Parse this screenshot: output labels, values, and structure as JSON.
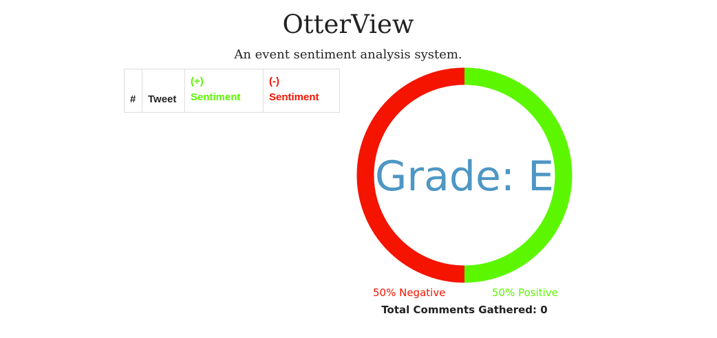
{
  "header": {
    "title": "OtterView",
    "subtitle": "An event sentiment analysis system."
  },
  "table": {
    "columns": [
      "#",
      "Tweet",
      "(+)",
      "Sentiment",
      "(-)",
      "Sentiment"
    ]
  },
  "chart": {
    "grade_label": "Grade: E",
    "negative_label": "50% Negative",
    "positive_label": "50% Positive",
    "negative_fraction": 0.5,
    "positive_fraction": 0.5,
    "negative_color": "#f41400",
    "positive_color": "#5cf700",
    "grade_color": "#4e97c4"
  },
  "footer": {
    "total_label": "Total Comments Gathered: 0"
  }
}
